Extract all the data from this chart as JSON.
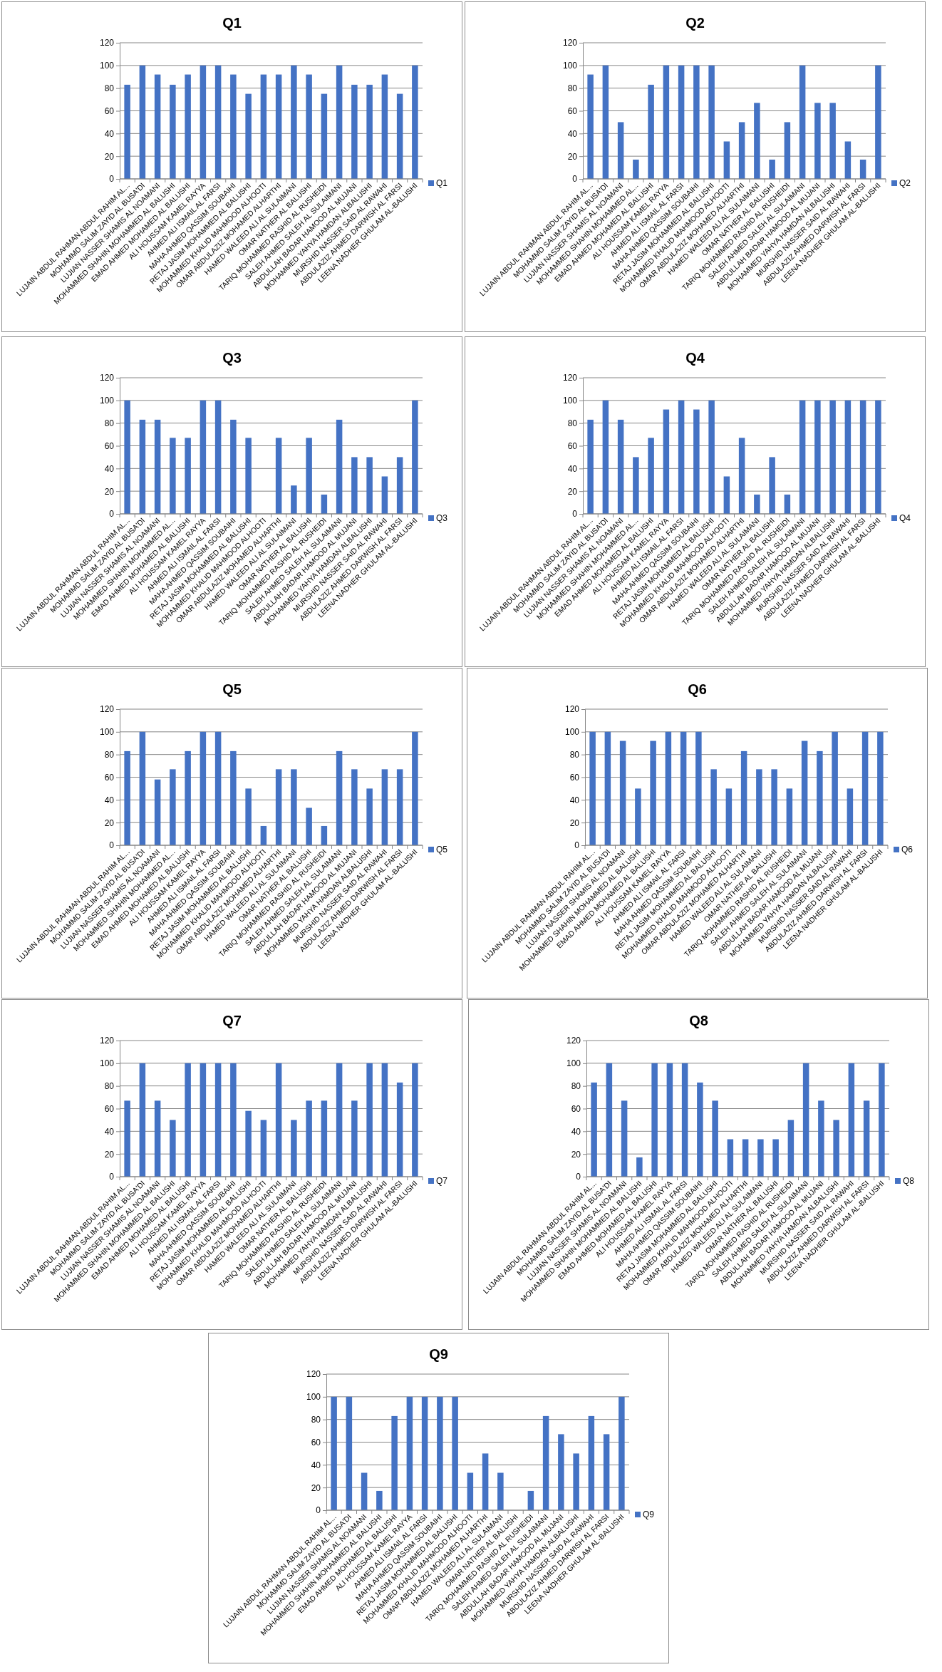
{
  "chart_data": [
    {
      "type": "bar",
      "title": "Q1",
      "categories": [
        "LUJAIN ABDUL RAHMAN ABDUL RAHIM AL...",
        "MOHAMMD SALIM ZAYID AL BUSA'DI",
        "LUJIAN NASSER SHAMIS AL NOAMANI",
        "MOHAMMED SHAHIN MOHAMMED AL BALUSHI",
        "EMAD AHMED MOHAMED AL BALUSHI",
        "ALI HOUSSAM KAMEL RAYYA",
        "AHMED ALI ISMAIL AL FARSI",
        "MAHA AHMED QASSIM SOUBAIHI",
        "RETAJ JASIM MOHAMMED AL BALUSHI",
        "MOHAMMED KHALID MAHMOOD ALHOOTI",
        "OMAR ABDULAZIZ MOHAMED ALHARTHI",
        "HAMED WALEED ALI AL SULAIMANI",
        "OMAR NATHER AL BALUSHI",
        "TARIQ MOHAMMED RASHID AL RUSHEIDI",
        "SALEH AHMED SALEH AL SULAIMANI",
        "ABDULLAH BADAR HAMOOD AL MUJANI",
        "MOHAMMED YAHYA HAMDAN ALBALUSHI",
        "MURSHID NASSER SAID AL RAWAHI",
        "ABDULAZIZ AHMED DARWISH AL FARSI",
        "LEENA NADHER GHULAM AL-BALUSHI"
      ],
      "series": [
        {
          "name": "Q1",
          "color": "#4472c4",
          "values": [
            83,
            100,
            92,
            83,
            92,
            100,
            100,
            92,
            75,
            92,
            92,
            100,
            92,
            75,
            100,
            83,
            83,
            92,
            75,
            100
          ]
        }
      ],
      "ylim": [
        0,
        120
      ],
      "yticks": [
        0,
        20,
        40,
        60,
        80,
        100,
        120
      ],
      "grid": "y",
      "legend": "right"
    },
    {
      "type": "bar",
      "title": "Q2",
      "categories": [
        "LUJAIN ABDUL RAHMAN ABDUL RAHIM AL...",
        "MOHAMMD SALIM ZAYID AL BUSA'DI",
        "LUJIAN NASSER SHAMIS AL NOAMANI",
        "MOHAMMED SHAHIN MOHAMMED AL...",
        "EMAD AHMED MOHAMED AL BALUSHI",
        "ALI HOUSSAM KAMEL RAYYA",
        "AHMED ALI ISMAIL AL FARSI",
        "MAHA AHMED QASSIM SOUBAIHI",
        "RETAJ JASIM MOHAMMED AL BALUSHI",
        "MOHAMMED KHALID MAHMOOD ALHOOTI",
        "OMAR ABDULAZIZ MOHAMED ALHARTHI",
        "HAMED WALEED ALI AL SULAIMANI",
        "OMAR NATHER AL BALUSHI",
        "TARIQ MOHAMMED RASHID AL RUSHEIDI",
        "SALEH AHMED SALEH AL SULAIMANI",
        "ABDULLAH BADAR HAMOOD AL MUJANI",
        "MOHAMMED YAHYA HAMDAN ALBALUSHI",
        "MURSHID NASSER SAID AL RAWAHI",
        "ABDULAZIZ AHMED DARWISH AL FARSI",
        "LEENA NADHER GHULAM AL-BALUSHI"
      ],
      "series": [
        {
          "name": "Q2",
          "color": "#4472c4",
          "values": [
            92,
            100,
            50,
            17,
            83,
            100,
            100,
            100,
            100,
            33,
            50,
            67,
            17,
            50,
            100,
            67,
            67,
            33,
            17,
            100
          ]
        }
      ],
      "ylim": [
        0,
        120
      ],
      "yticks": [
        0,
        20,
        40,
        60,
        80,
        100,
        120
      ],
      "grid": "y",
      "legend": "right"
    },
    {
      "type": "bar",
      "title": "Q3",
      "categories": [
        "LUJAIN ABDUL RAHMAN ABDUL RAHIM AL...",
        "MOHAMMD SALIM ZAYID AL BUSA'DI",
        "LUJIAN NASSER SHAMIS AL NOAMANI",
        "MOHAMMED SHAHIN MOHAMMED AL...",
        "EMAD AHMED MOHAMED AL BALUSHI",
        "ALI HOUSSAM KAMEL RAYYA",
        "AHMED ALI ISMAIL AL FARSI",
        "MAHA AHMED QASSIM SOUBAIHI",
        "RETAJ JASIM MOHAMMED AL BALUSHI",
        "MOHAMMED KHALID MAHMOOD ALHOOTI",
        "OMAR ABDULAZIZ MOHAMED ALHARTHI",
        "HAMED WALEED ALI AL SULAIMANI",
        "OMAR NATHER AL BALUSHI",
        "TARIQ MOHAMMED RASHID AL RUSHEIDI",
        "SALEH AHMED SALEH AL SULAIMANI",
        "ABDULLAH BADAR HAMOOD AL MUJANI",
        "MOHAMMED YAHYA HAMDAN ALBALUSHI",
        "MURSHID NASSER SAID AL RAWAHI",
        "ABDULAZIZ AHMED DARWISH AL FARSI",
        "LEENA NADHER GHULAM AL-BALUSHI"
      ],
      "series": [
        {
          "name": "Q3",
          "color": "#4472c4",
          "values": [
            100,
            83,
            83,
            67,
            67,
            100,
            100,
            83,
            67,
            0,
            67,
            25,
            67,
            17,
            83,
            50,
            50,
            33,
            50,
            100
          ]
        }
      ],
      "ylim": [
        0,
        120
      ],
      "yticks": [
        0,
        20,
        40,
        60,
        80,
        100,
        120
      ],
      "grid": "y",
      "legend": "right"
    },
    {
      "type": "bar",
      "title": "Q4",
      "categories": [
        "LUJAIN ABDUL RAHMAN ABDUL RAHIM AL...",
        "MOHAMMD SALIM ZAYID AL BUSA'DI",
        "LUJIAN NASSER SHAMIS AL NOAMANI",
        "MOHAMMED SHAHIN MOHAMMED AL...",
        "EMAD AHMED MOHAMED AL BALUSHI",
        "ALI HOUSSAM KAMEL RAYYA",
        "AHMED ALI ISMAIL AL FARSI",
        "MAHA AHMED QASSIM SOUBAIHI",
        "RETAJ JASIM MOHAMMED AL BALUSHI",
        "MOHAMMED KHALID MAHMOOD ALHOOTI",
        "OMAR ABDULAZIZ MOHAMED ALHARTHI",
        "HAMED WALEED ALI AL SULAIMANI",
        "OMAR NATHER AL BALUSHI",
        "TARIQ MOHAMMED RASHID AL RUSHEIDI",
        "SALEH AHMED SALEH AL SULAIMANI",
        "ABDULLAH BADAR HAMOOD AL MUJANI",
        "MOHAMMED YAHYA HAMDAN ALBALUSHI",
        "MURSHID NASSER SAID AL RAWAHI",
        "ABDULAZIZ AHMED DARWISH AL FARSI",
        "LEENA NADHER GHULAM AL-BALUSHI"
      ],
      "series": [
        {
          "name": "Q4",
          "color": "#4472c4",
          "values": [
            83,
            100,
            83,
            50,
            67,
            92,
            100,
            92,
            100,
            33,
            67,
            17,
            50,
            17,
            100,
            100,
            100,
            100,
            100,
            100
          ]
        }
      ],
      "ylim": [
        0,
        120
      ],
      "yticks": [
        0,
        20,
        40,
        60,
        80,
        100,
        120
      ],
      "grid": "y",
      "legend": "right"
    },
    {
      "type": "bar",
      "title": "Q5",
      "categories": [
        "LUJAIN ABDUL RAHMAN ABDUL RAHIM AL...",
        "MOHAMMD SALIM ZAYID AL BUSA'DI",
        "LUJIAN NASSER SHAMIS AL NOAMANI",
        "MOHAMMED SHAHIN MOHAMMED AL...",
        "EMAD AHMED MOHAMED AL BALUSHI",
        "ALI HOUSSAM KAMEL RAYYA",
        "AHMED ALI ISMAIL AL FARSI",
        "MAHA AHMED QASSIM SOUBAIHI",
        "RETAJ JASIM MOHAMMED AL BALUSHI",
        "MOHAMMED KHALID MAHMOOD ALHOOTI",
        "OMAR ABDULAZIZ MOHAMED ALHARTHI",
        "HAMED WALEED ALI AL SULAIMANI",
        "OMAR NATHER AL BALUSHI",
        "TARIQ MOHAMMED RASHID AL RUSHEIDI",
        "SALEH AHMED SALEH AL SULAIMANI",
        "ABDULLAH BADAR HAMOOD AL MUJANI",
        "MOHAMMED YAHYA HAMDAN ALBALUSHI",
        "MURSHID NASSER SAID AL RAWAHI",
        "ABDULAZIZ AHMED DARWISH AL FARSI",
        "LEENA NADHER GHULAM AL-BALUSHI"
      ],
      "series": [
        {
          "name": "Q5",
          "color": "#4472c4",
          "values": [
            83,
            100,
            58,
            67,
            83,
            100,
            100,
            83,
            50,
            17,
            67,
            67,
            33,
            17,
            83,
            67,
            50,
            67,
            67,
            100
          ]
        }
      ],
      "ylim": [
        0,
        120
      ],
      "yticks": [
        0,
        20,
        40,
        60,
        80,
        100,
        120
      ],
      "grid": "y",
      "legend": "right"
    },
    {
      "type": "bar",
      "title": "Q6",
      "categories": [
        "LUJAIN ABDUL RAHMAN ABDUL RAHIM AL...",
        "MOHAMMD SALIM ZAYID AL BUSA'DI",
        "LUJIAN NASSER SHAMIS AL NOAMANI",
        "MOHAMMED SHAHIN MOHAMMED AL BALUSHI",
        "EMAD AHMED MOHAMED AL BALUSHI",
        "ALI HOUSSAM KAMEL RAYYA",
        "AHMED ALI ISMAIL AL FARSI",
        "MAHA AHMED QASSIM SOUBAIHI",
        "RETAJ JASIM MOHAMMED AL BALUSHI",
        "MOHAMMED KHALID MAHMOOD ALHOOTI",
        "OMAR ABDULAZIZ MOHAMED ALHARTHI",
        "HAMED WALEED ALI AL SULAIMANI",
        "OMAR NATHER AL BALUSHI",
        "TARIQ MOHAMMED RASHID AL RUSHEIDI",
        "SALEH AHMED SALEH AL SULAIMANI",
        "ABDULLAH BADAR HAMOOD AL MUJANI",
        "MOHAMMED YAHYA HAMDAN ALBALUSHI",
        "MURSHID NASSER SAID AL RAWAHI",
        "ABDULAZIZ AHMED DARWISH AL FARSI",
        "LEENA NADHER GHULAM AL-BALUSHI"
      ],
      "series": [
        {
          "name": "Q6",
          "color": "#4472c4",
          "values": [
            100,
            100,
            92,
            50,
            92,
            100,
            100,
            100,
            67,
            50,
            83,
            67,
            67,
            50,
            92,
            83,
            100,
            50,
            100,
            100
          ]
        }
      ],
      "ylim": [
        0,
        120
      ],
      "yticks": [
        0,
        20,
        40,
        60,
        80,
        100,
        120
      ],
      "grid": "y",
      "legend": "right"
    },
    {
      "type": "bar",
      "title": "Q7",
      "categories": [
        "LUJAIN ABDUL RAHMAN ABDUL RAHIM AL...",
        "MOHAMMD SALIM ZAYID AL BUSA'DI",
        "LUJIAN NASSER SHAMIS AL NOAMANI",
        "MOHAMMED SHAHIN MOHAMMED AL BALUSHI",
        "EMAD AHMED MOHAMED AL BALUSHI",
        "ALI HOUSSAM KAMEL RAYYA",
        "AHMED ALI ISMAIL AL FARSI",
        "MAHA AHMED QASSIM SOUBAIHI",
        "RETAJ JASIM MOHAMMED AL BALUSHI",
        "MOHAMMED KHALID MAHMOOD ALHOOTI",
        "OMAR ABDULAZIZ MOHAMED ALHARTHI",
        "HAMED WALEED ALI AL SULAIMANI",
        "OMAR NATHER AL BALUSHI",
        "TARIQ MOHAMMED RASHID AL RUSHEIDI",
        "SALEH AHMED SALEH AL SULAIMANI",
        "ABDULLAH BADAR HAMOOD AL MUJANI",
        "MOHAMMED YAHYA HAMDAN ALBALUSHI",
        "MURSHID NASSER SAID AL RAWAHI",
        "ABDULAZIZ AHMED DARWISH AL FARSI",
        "LEENA NADHER GHULAM AL-BALUSHI"
      ],
      "series": [
        {
          "name": "Q7",
          "color": "#4472c4",
          "values": [
            67,
            100,
            67,
            50,
            100,
            100,
            100,
            100,
            58,
            50,
            100,
            50,
            67,
            67,
            100,
            67,
            100,
            100,
            83,
            100
          ]
        }
      ],
      "ylim": [
        0,
        120
      ],
      "yticks": [
        0,
        20,
        40,
        60,
        80,
        100,
        120
      ],
      "grid": "y",
      "legend": "right"
    },
    {
      "type": "bar",
      "title": "Q8",
      "categories": [
        "LUJAIN ABDUL RAHMAN ABDUL RAHIM AL...",
        "MOHAMMD SALIM ZAYID AL BUSA'DI",
        "LUJIAN NASSER SHAMIS AL NOAMANI",
        "MOHAMMED SHAHIN MOHAMMED AL BALUSHI",
        "EMAD AHMED MOHAMED AL BALUSHI",
        "ALI HOUSSAM KAMEL RAYYA",
        "AHMED ALI ISMAIL AL FARSI",
        "MAHA AHMED QASSIM SOUBAIHI",
        "RETAJ JASIM MOHAMMED AL BALUSHI",
        "MOHAMMED KHALID MAHMOOD ALHOOTI",
        "OMAR ABDULAZIZ MOHAMED ALHARTHI",
        "HAMED WALEED ALI AL SULAIMANI",
        "OMAR NATHER AL BALUSHI",
        "TARIQ MOHAMMED RASHID AL RUSHEIDI",
        "SALEH AHMED SALEH AL SULAIMANI",
        "ABDULLAH BADAR HAMOOD AL MUJANI",
        "MOHAMMED YAHYA HAMDAN ALBALUSHI",
        "MURSHID NASSER SAID AL RAWAHI",
        "ABDULAZIZ AHMED DARWISH AL FARSI",
        "LEENA NADHER GHULAM AL-BALUSHI"
      ],
      "series": [
        {
          "name": "Q8",
          "color": "#4472c4",
          "values": [
            83,
            100,
            67,
            17,
            100,
            100,
            100,
            83,
            67,
            33,
            33,
            33,
            33,
            50,
            100,
            67,
            50,
            100,
            67,
            100
          ]
        }
      ],
      "ylim": [
        0,
        120
      ],
      "yticks": [
        0,
        20,
        40,
        60,
        80,
        100,
        120
      ],
      "grid": "y",
      "legend": "right"
    },
    {
      "type": "bar",
      "title": "Q9",
      "categories": [
        "LUJAIN ABDUL RAHMAN ABDUL RAHIM AL...",
        "MOHAMMD SALIM ZAYID AL BUSA'DI",
        "LUJIAN NASSER SHAMIS AL NOAMANI",
        "MOHAMMED SHAHIN MOHAMMED AL BALUSHI",
        "EMAD AHMED MOHAMED AL BALUSHI",
        "ALI HOUSSAM KAMEL RAYYA",
        "AHMED ALI ISMAIL AL FARSI",
        "MAHA AHMED QASSIM SOUBAIHI",
        "RETAJ JASIM MOHAMMED AL BALUSHI",
        "MOHAMMED KHALID MAHMOOD ALHOOTI",
        "OMAR ABDULAZIZ MOHAMED ALHARTHI",
        "HAMED WALEED ALI AL SULAIMANI",
        "OMAR NATHER AL BALUSHI",
        "TARIQ MOHAMMED RASHID AL RUSHEIDI",
        "SALEH AHMED SALEH AL SULAIMANI",
        "ABDULLAH BADAR HAMOOD AL MUJANI",
        "MOHAMMED YAHYA HAMDAN ALBALUSHI",
        "MURSHID NASSER SAID AL RAWAHI",
        "ABDULAZIZ AHMED DARWISH AL FARSI",
        "LEENA NADHER GHULAM AL-BALUSHI"
      ],
      "series": [
        {
          "name": "Q9",
          "color": "#4472c4",
          "values": [
            100,
            100,
            33,
            17,
            83,
            100,
            100,
            100,
            100,
            33,
            50,
            33,
            0,
            17,
            83,
            67,
            50,
            83,
            67,
            100
          ]
        }
      ],
      "ylim": [
        0,
        120
      ],
      "yticks": [
        0,
        20,
        40,
        60,
        80,
        100,
        120
      ],
      "grid": "y",
      "legend": "right"
    }
  ]
}
